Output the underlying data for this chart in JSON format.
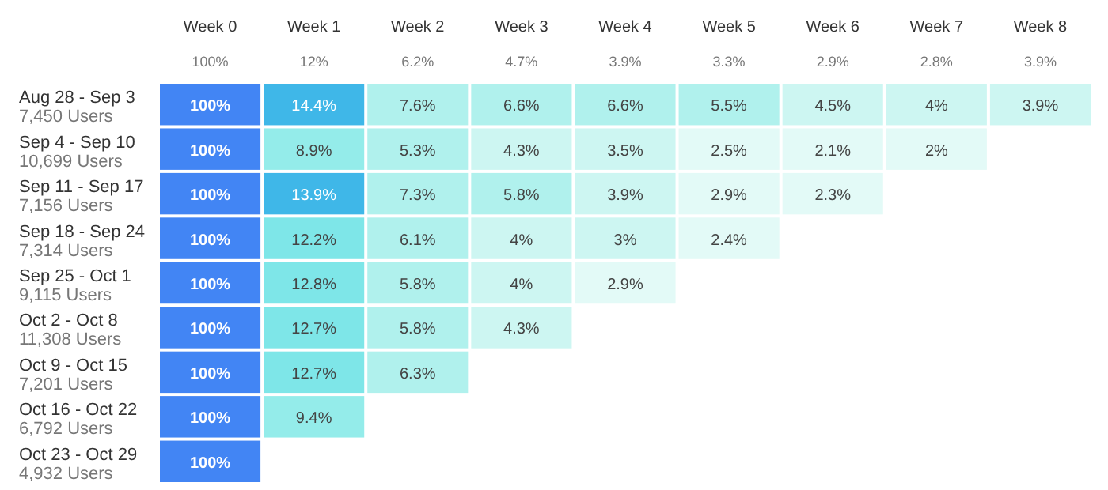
{
  "chart_data": {
    "type": "heatmap",
    "categories": [
      "Week 0",
      "Week 1",
      "Week 2",
      "Week 3",
      "Week 4",
      "Week 5",
      "Week 6",
      "Week 7",
      "Week 8"
    ],
    "annotations": [
      "100%",
      "12%",
      "6.2%",
      "4.7%",
      "3.9%",
      "3.3%",
      "2.9%",
      "2.8%",
      "3.9%"
    ],
    "y_categories": [
      "Aug 28 - Sep 3\n7,450 Users",
      "Sep 4 - Sep 10\n10,699 Users",
      "Sep 11 - Sep 17\n7,156 Users",
      "Sep 18 - Sep 24\n7,314 Users",
      "Sep 25 - Oct 1\n9,115 Users",
      "Oct 2 - Oct 8\n11,308 Users",
      "Oct 9 - Oct 15\n7,201 Users",
      "Oct 16 - Oct 22\n6,792 Users",
      "Oct 23 - Oct 29\n4,932 Users"
    ],
    "cells": [
      [
        100,
        14.4,
        7.6,
        6.6,
        6.6,
        5.5,
        4.5,
        4,
        3.9
      ],
      [
        100,
        8.9,
        5.3,
        4.3,
        3.5,
        2.5,
        2.1,
        2,
        null
      ],
      [
        100,
        13.9,
        7.3,
        5.8,
        3.9,
        2.9,
        2.3,
        null,
        null
      ],
      [
        100,
        12.2,
        6.1,
        4,
        3,
        2.4,
        null,
        null,
        null
      ],
      [
        100,
        12.8,
        5.8,
        4,
        2.9,
        null,
        null,
        null,
        null
      ],
      [
        100,
        12.7,
        5.8,
        4.3,
        null,
        null,
        null,
        null,
        null
      ],
      [
        100,
        12.7,
        6.3,
        null,
        null,
        null,
        null,
        null,
        null
      ],
      [
        100,
        9.4,
        null,
        null,
        null,
        null,
        null,
        null,
        null
      ],
      [
        100,
        null,
        null,
        null,
        null,
        null,
        null,
        null,
        null
      ]
    ],
    "cell_labels": [
      [
        "100%",
        "14.4%",
        "7.6%",
        "6.6%",
        "6.6%",
        "5.5%",
        "4.5%",
        "4%",
        "3.9%"
      ],
      [
        "100%",
        "8.9%",
        "5.3%",
        "4.3%",
        "3.5%",
        "2.5%",
        "2.1%",
        "2%",
        null
      ],
      [
        "100%",
        "13.9%",
        "7.3%",
        "5.8%",
        "3.9%",
        "2.9%",
        "2.3%",
        null,
        null
      ],
      [
        "100%",
        "12.2%",
        "6.1%",
        "4%",
        "3%",
        "2.4%",
        null,
        null,
        null
      ],
      [
        "100%",
        "12.8%",
        "5.8%",
        "4%",
        "2.9%",
        null,
        null,
        null,
        null
      ],
      [
        "100%",
        "12.7%",
        "5.8%",
        "4.3%",
        null,
        null,
        null,
        null,
        null
      ],
      [
        "100%",
        "12.7%",
        "6.3%",
        null,
        null,
        null,
        null,
        null,
        null
      ],
      [
        "100%",
        "9.4%",
        null,
        null,
        null,
        null,
        null,
        null,
        null
      ],
      [
        "100%",
        null,
        null,
        null,
        null,
        null,
        null,
        null,
        null
      ]
    ]
  }
}
